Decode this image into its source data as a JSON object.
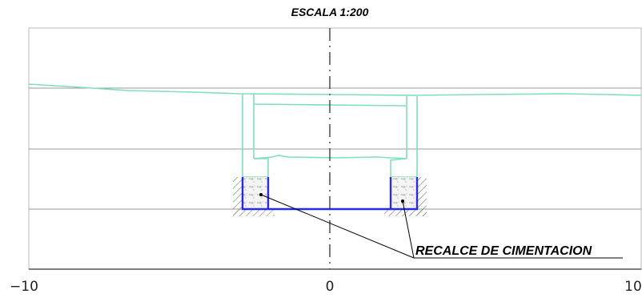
{
  "title": "ESCALA 1:200",
  "x_ticks": [
    "−10",
    "0",
    "10"
  ],
  "callout": "RECALCE DE CIMENTACION",
  "colors": {
    "existing_structure": "#7fe0b8",
    "underpinning": "#2a2ae0",
    "axis": "#333333",
    "grid": "#9a9a9a"
  }
}
